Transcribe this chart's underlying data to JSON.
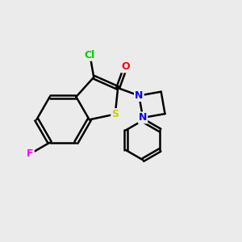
{
  "bg_color": "#ebebeb",
  "bond_color": "#000000",
  "bond_width": 1.8,
  "atom_colors": {
    "S": "#cccc00",
    "N": "#0000ff",
    "O": "#ff0000",
    "Cl": "#00cc00",
    "F": "#ff00ff",
    "C": "#000000"
  },
  "figsize": [
    3.0,
    3.0
  ],
  "dpi": 100,
  "font_size": 9
}
